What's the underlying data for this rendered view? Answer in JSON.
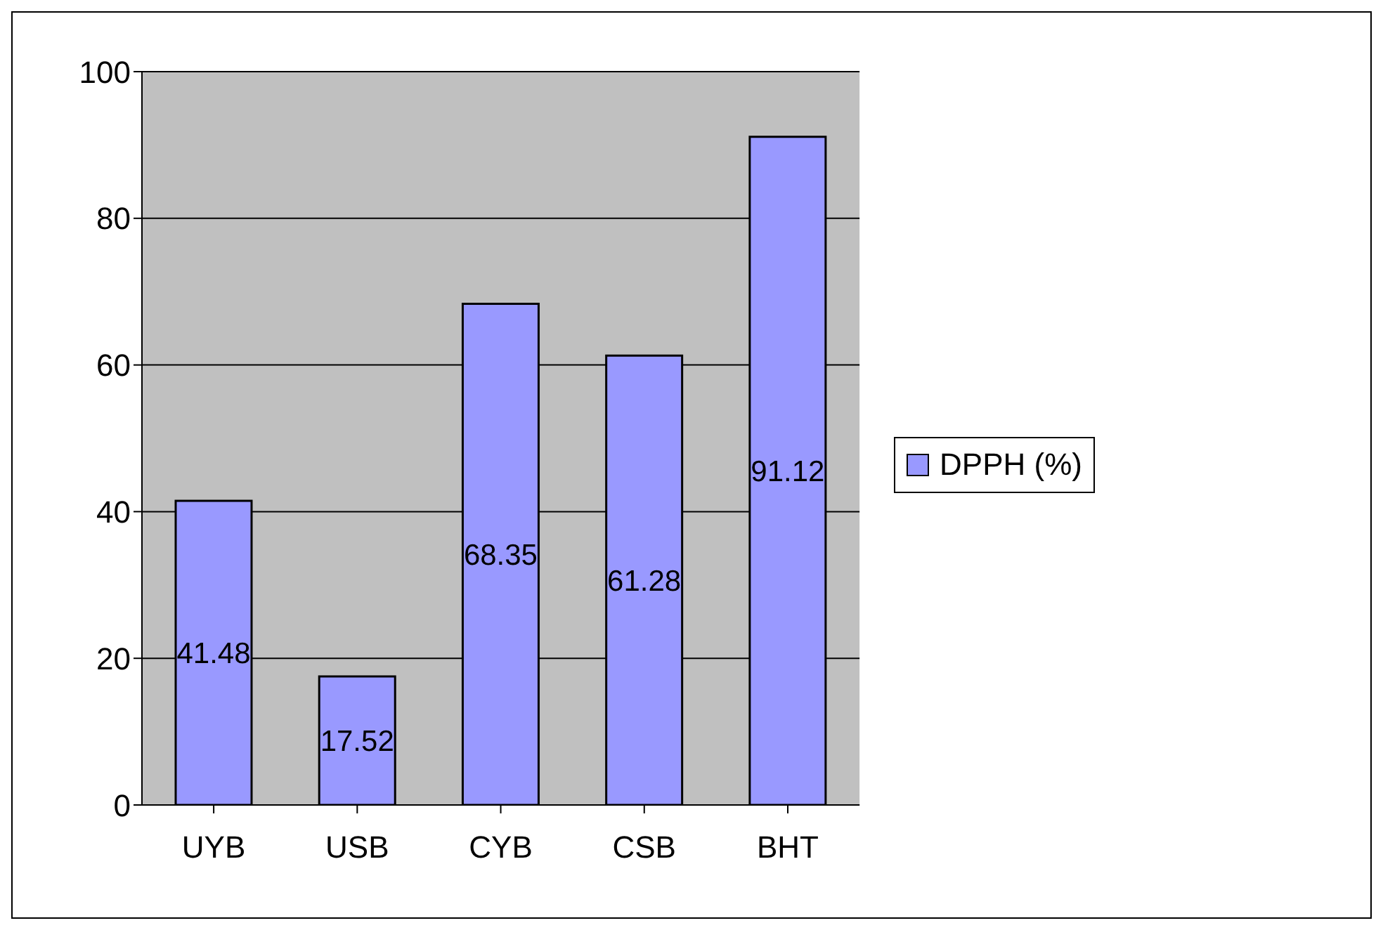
{
  "chart_data": {
    "type": "bar",
    "categories": [
      "UYB",
      "USB",
      "CYB",
      "CSB",
      "BHT"
    ],
    "series": [
      {
        "name": "DPPH (%)",
        "color": "#9999ff",
        "values": [
          41.48,
          17.52,
          68.35,
          61.28,
          91.12
        ]
      }
    ],
    "ylim": [
      0,
      100
    ],
    "yticks": [
      0,
      20,
      40,
      60,
      80,
      100
    ],
    "grid": "y",
    "legend": "right",
    "data_labels": true
  }
}
